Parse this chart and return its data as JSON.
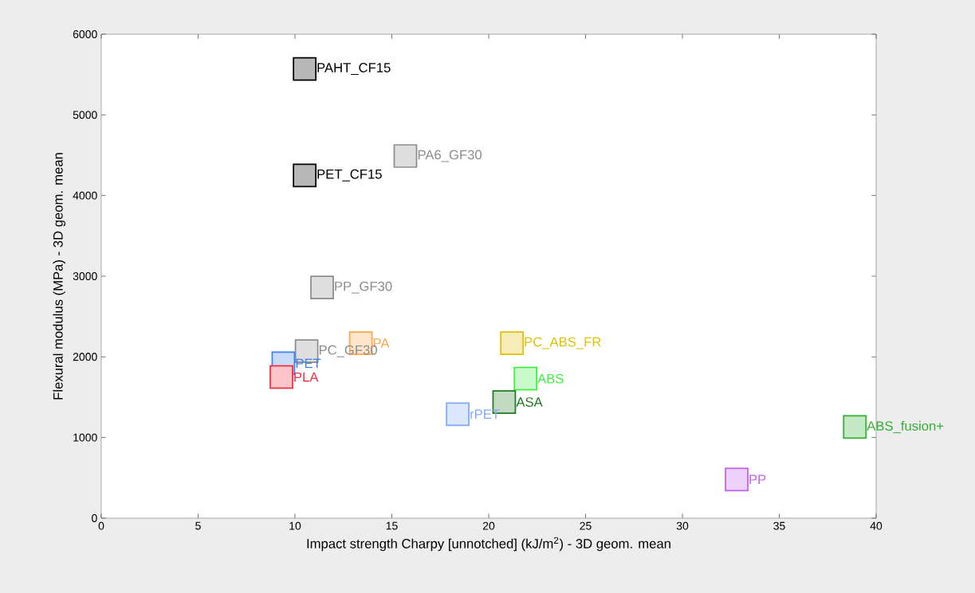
{
  "chart_data": {
    "type": "scatter",
    "xlabel": "Impact strength Charpy [unnotched] (kJ/m$^{2}$) - 3D geom. mean",
    "ylabel": "Flexural modulus (MPa) - 3D geom. mean",
    "xlim": [
      0,
      40
    ],
    "xticks": [
      0,
      5,
      10,
      15,
      20,
      25,
      30,
      35,
      40
    ],
    "ylim": [
      0,
      6000
    ],
    "yticks": [
      0,
      1000,
      2000,
      3000,
      4000,
      5000,
      6000
    ],
    "grid": false,
    "legend": false,
    "marker": "square",
    "series": [
      {
        "name": "PAHT_CF15",
        "color": "#000000",
        "x": [
          10.5
        ],
        "values": [
          5570
        ]
      },
      {
        "name": "PA6_GF30",
        "color": "#8c8c8c",
        "x": [
          15.7
        ],
        "values": [
          4490
        ]
      },
      {
        "name": "PET_CF15",
        "color": "#000000",
        "x": [
          10.5
        ],
        "values": [
          4250
        ]
      },
      {
        "name": "PP_GF30",
        "color": "#8c8c8c",
        "x": [
          11.4
        ],
        "values": [
          2860
        ]
      },
      {
        "name": "PA",
        "color": "#ffa64d",
        "x": [
          13.4
        ],
        "values": [
          2170
        ]
      },
      {
        "name": "PC_GF30",
        "color": "#8c8c8c",
        "x": [
          10.6
        ],
        "values": [
          2070
        ]
      },
      {
        "name": "PET",
        "color": "#3f7ff0",
        "x": [
          9.4
        ],
        "values": [
          1920
        ]
      },
      {
        "name": "PLA",
        "color": "#f03040",
        "x": [
          9.3
        ],
        "values": [
          1750
        ]
      },
      {
        "name": "PC_ABS_FR",
        "color": "#e0c000",
        "x": [
          21.2
        ],
        "values": [
          2170
        ]
      },
      {
        "name": "ABS",
        "color": "#40f040",
        "x": [
          21.9
        ],
        "values": [
          1730
        ]
      },
      {
        "name": "ASA",
        "color": "#207a20",
        "x": [
          20.8
        ],
        "values": [
          1440
        ]
      },
      {
        "name": "rPET",
        "color": "#80a8f8",
        "x": [
          18.4
        ],
        "values": [
          1290
        ]
      },
      {
        "name": "ABS_fusion+",
        "color": "#30b030",
        "x": [
          38.9
        ],
        "values": [
          1130
        ]
      },
      {
        "name": "PP",
        "color": "#c060f0",
        "x": [
          32.8
        ],
        "values": [
          480
        ]
      }
    ]
  }
}
